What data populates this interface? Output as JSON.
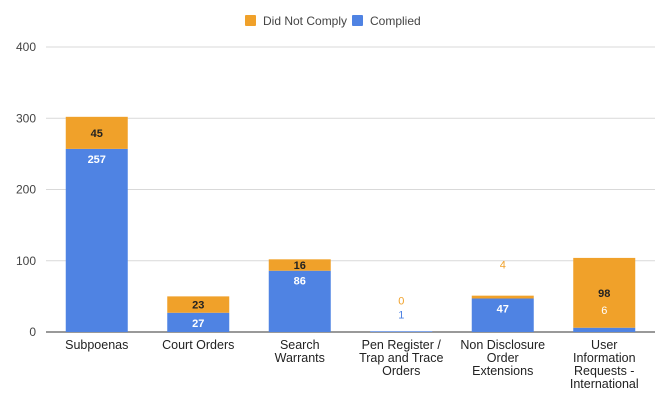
{
  "chart_data": {
    "type": "bar",
    "stacked": true,
    "title": "",
    "xlabel": "",
    "ylabel": "",
    "ylim": [
      0,
      400
    ],
    "yticks": [
      0,
      100,
      200,
      300,
      400
    ],
    "grid": true,
    "legend_position": "top-center",
    "categories": [
      [
        "Subpoenas"
      ],
      [
        "Court Orders"
      ],
      [
        "Search",
        "Warrants"
      ],
      [
        "Pen Register /",
        "Trap and Trace",
        "Orders"
      ],
      [
        "Non Disclosure",
        "Order",
        "Extensions"
      ],
      [
        "User",
        "Information",
        "Requests -",
        "International"
      ]
    ],
    "series": [
      {
        "name": "Complied",
        "color": "#4f83e3",
        "values": [
          257,
          27,
          86,
          1,
          47,
          6
        ]
      },
      {
        "name": "Did Not Comply",
        "color": "#f0a12a",
        "values": [
          45,
          23,
          16,
          0,
          4,
          98
        ]
      }
    ],
    "legend_order": [
      "Did Not Comply",
      "Complied"
    ]
  }
}
